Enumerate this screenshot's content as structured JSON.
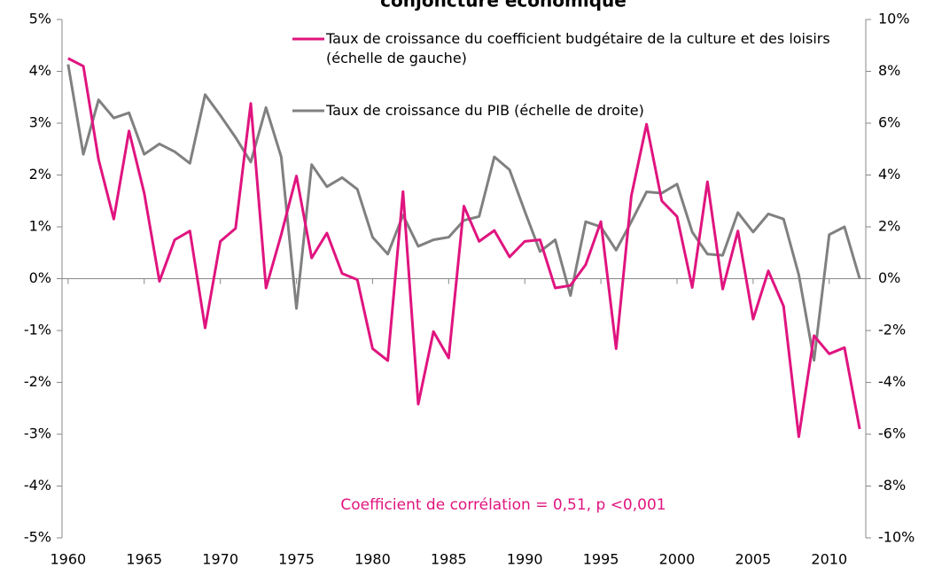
{
  "chart_data": {
    "type": "line",
    "title": "conjoncture économique",
    "annotation": "Coefficient de corrélation = 0,51, p <0,001",
    "x": [
      1960,
      1961,
      1962,
      1963,
      1964,
      1965,
      1966,
      1967,
      1968,
      1969,
      1970,
      1971,
      1972,
      1973,
      1974,
      1975,
      1976,
      1977,
      1978,
      1979,
      1980,
      1981,
      1982,
      1983,
      1984,
      1985,
      1986,
      1987,
      1988,
      1989,
      1990,
      1991,
      1992,
      1993,
      1994,
      1995,
      1996,
      1997,
      1998,
      1999,
      2000,
      2001,
      2002,
      2003,
      2004,
      2005,
      2006,
      2007,
      2008,
      2009,
      2010,
      2011,
      2012
    ],
    "series": [
      {
        "name": "Taux de croissance du coefficient budgétaire de la culture et des loisirs (échelle de gauche)",
        "color": "#e0147f",
        "values": [
          4.25,
          4.1,
          2.3,
          1.15,
          2.85,
          1.65,
          -0.05,
          0.75,
          0.92,
          -0.95,
          0.72,
          0.97,
          3.38,
          -0.18,
          0.85,
          1.98,
          0.4,
          0.88,
          0.1,
          -0.02,
          -1.35,
          -1.58,
          1.68,
          -2.42,
          -1.02,
          -1.53,
          1.4,
          0.72,
          0.93,
          0.42,
          0.72,
          0.75,
          -0.18,
          -0.13,
          0.27,
          1.1,
          -1.35,
          1.6,
          2.98,
          1.5,
          1.2,
          -0.17,
          1.87,
          -0.2,
          0.92,
          -0.78,
          0.15,
          -0.53,
          -3.05,
          -1.1,
          -1.45,
          -1.33,
          -2.9
        ]
      },
      {
        "name": "Taux de croissance du PIB (échelle de droite)",
        "color": "#808080",
        "axis": "y2",
        "values": [
          8.27,
          4.8,
          6.9,
          6.2,
          6.4,
          4.8,
          5.2,
          4.9,
          4.45,
          7.1,
          6.3,
          5.45,
          4.5,
          6.6,
          4.7,
          -1.15,
          4.4,
          3.55,
          3.9,
          3.45,
          1.6,
          0.95,
          2.45,
          1.25,
          1.5,
          1.6,
          2.25,
          2.4,
          4.7,
          4.2,
          2.6,
          1.05,
          1.5,
          -0.65,
          2.2,
          2.0,
          1.1,
          2.2,
          3.35,
          3.3,
          3.65,
          1.8,
          0.95,
          0.9,
          2.55,
          1.8,
          2.5,
          2.3,
          0.15,
          -3.15,
          1.7,
          2.0,
          0
        ]
      }
    ],
    "xlim": [
      1959.6,
      2012.4
    ],
    "xticks": [
      1960,
      1965,
      1970,
      1975,
      1980,
      1985,
      1990,
      1995,
      2000,
      2005,
      2010
    ],
    "ylim": [
      -5,
      5
    ],
    "yticks": [
      {
        "value": 5,
        "label": "5%"
      },
      {
        "value": 4,
        "label": "4%"
      },
      {
        "value": 3,
        "label": "3%"
      },
      {
        "value": 2,
        "label": "2%"
      },
      {
        "value": 1,
        "label": "1%"
      },
      {
        "value": 0,
        "label": "0%"
      },
      {
        "value": -1,
        "label": "-1%"
      },
      {
        "value": -2,
        "label": "-2%"
      },
      {
        "value": -3,
        "label": "-3%"
      },
      {
        "value": -4,
        "label": "-4%"
      },
      {
        "value": -5,
        "label": "-5%"
      }
    ],
    "y2lim": [
      -10,
      10
    ],
    "y2ticks": [
      {
        "value": 10,
        "label": "10%"
      },
      {
        "value": 8,
        "label": "8%"
      },
      {
        "value": 6,
        "label": "6%"
      },
      {
        "value": 4,
        "label": "4%"
      },
      {
        "value": 2,
        "label": "2%"
      },
      {
        "value": 0,
        "label": "0%"
      },
      {
        "value": -2,
        "label": "-2%"
      },
      {
        "value": -4,
        "label": "-4%"
      },
      {
        "value": -6,
        "label": "-6%"
      },
      {
        "value": -8,
        "label": "-8%"
      },
      {
        "value": -10,
        "label": "-10%"
      }
    ]
  }
}
